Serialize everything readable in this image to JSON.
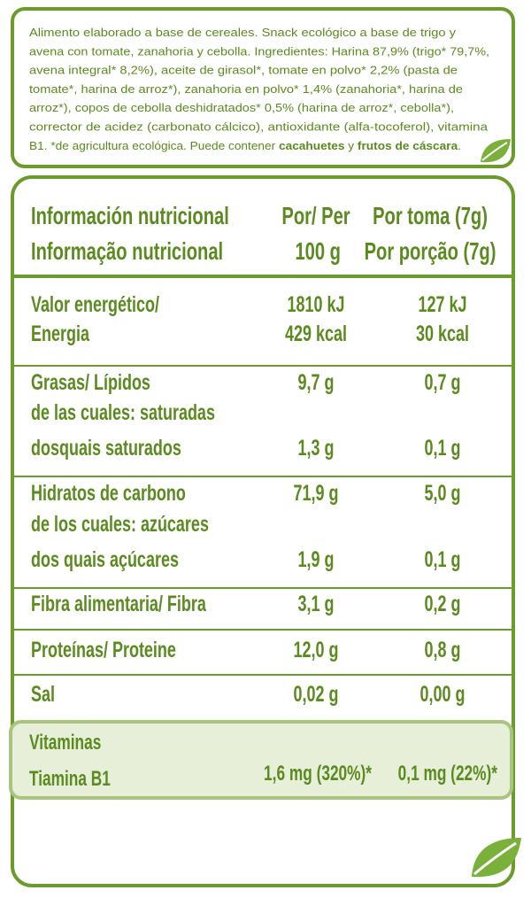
{
  "ingredients": {
    "lines": [
      "Alimento elaborado a base de cereales. Snack ecológico a base de trigo y",
      "avena con tomate, zanahoria y cebolla. Ingredientes: Harina 87,9% (trigo* 79,7%,",
      "avena integral* 8,2%), aceite de girasol*, tomate en polvo* 2,2% (pasta de",
      "tomate*, harina de arroz*), zanahoria en polvo* 1,4% (zanahoria*, harina de",
      "arroz*), copos de cebolla deshidratados* 0,5% (harina de arroz*, cebolla*),",
      "corrector de acidez (carbonato cálcico), antioxidante (alfa-tocoferol), vitamina"
    ],
    "last_line": [
      {
        "text": "B1. *de agricultura ecológica. Puede contener "
      },
      {
        "text": "cacahuetes",
        "bold": true
      },
      {
        "text": " y "
      },
      {
        "text": "frutos de cáscara",
        "bold": true
      },
      {
        "text": "."
      }
    ]
  },
  "table": {
    "header": [
      [
        "Información nutricional",
        "Informação nutricional"
      ],
      [
        "Por/ Per",
        "100 g"
      ],
      [
        "Por toma (7g)",
        "Por porção (7g)"
      ]
    ],
    "groups": [
      [
        {
          "label": "Valor energético/",
          "values": [
            "1810 kJ",
            "127 kJ"
          ]
        },
        {
          "label": "Energia",
          "values": [
            "429 kcal",
            "30 kcal"
          ]
        }
      ],
      [
        {
          "label": "Grasas/ Lípidos",
          "values": [
            "9,7 g",
            "0,7 g"
          ]
        },
        {
          "label": "de las cuales: saturadas"
        },
        {
          "label": "dosquais saturados",
          "values": [
            "1,3 g",
            "0,1 g"
          ]
        }
      ],
      [
        {
          "label": "Hidratos de carbono",
          "values": [
            "71,9 g",
            "5,0 g"
          ]
        },
        {
          "label": "de los cuales: azúcares"
        },
        {
          "label": "dos quais açúcares",
          "values": [
            "1,9 g",
            "0,1 g"
          ]
        }
      ],
      [
        {
          "label": "Fibra alimentaria/ Fibra",
          "values": [
            "3,1 g",
            "0,2 g"
          ]
        }
      ],
      [
        {
          "label": "Proteínas/ Proteine",
          "values": [
            "12,0 g",
            "0,8 g"
          ]
        }
      ],
      [
        {
          "label": "Sal",
          "values": [
            "0,02 g",
            "0,00 g"
          ]
        }
      ]
    ],
    "vitamins": [
      {
        "label": "Vitaminas"
      },
      {
        "label": "Tiamina B1",
        "values": [
          "1,6 mg (320%)*",
          "0,1 mg (22%)*"
        ]
      }
    ]
  }
}
